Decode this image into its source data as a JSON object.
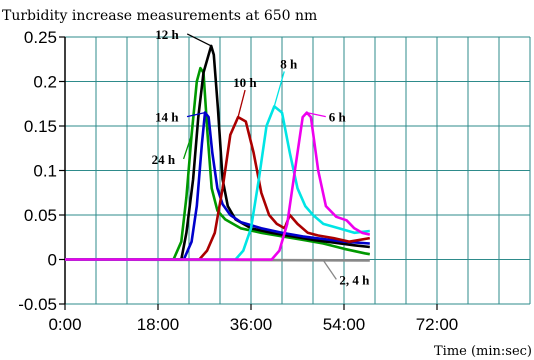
{
  "chart_data": {
    "type": "line",
    "title": "Turbidity increase measurements at 650 nm",
    "xlabel": "Time (min:sec)",
    "ylabel": "",
    "x_unit": "minutes",
    "xlim": [
      0,
      90
    ],
    "ylim": [
      -0.05,
      0.25
    ],
    "grid": true,
    "x_ticks": [
      {
        "value": 0,
        "label": "0:00"
      },
      {
        "value": 18,
        "label": "18:00"
      },
      {
        "value": 36,
        "label": "36:00"
      },
      {
        "value": 54,
        "label": "54:00"
      },
      {
        "value": 72,
        "label": "72:00"
      }
    ],
    "y_ticks": [
      {
        "value": -0.05,
        "label": "-0.05"
      },
      {
        "value": 0,
        "label": "0"
      },
      {
        "value": 0.05,
        "label": "0.05"
      },
      {
        "value": 0.1,
        "label": "0.1"
      },
      {
        "value": 0.15,
        "label": "0.15"
      },
      {
        "value": 0.2,
        "label": "0.2"
      },
      {
        "value": 0.25,
        "label": "0.25"
      }
    ],
    "series": [
      {
        "name": "2, 4 h",
        "color": "#888888",
        "points": [
          [
            0,
            0
          ],
          [
            59,
            -0.001
          ]
        ]
      },
      {
        "name": "24 h",
        "color": "#009900",
        "points": [
          [
            0,
            0
          ],
          [
            21,
            0
          ],
          [
            22.5,
            0.02
          ],
          [
            23.5,
            0.07
          ],
          [
            24.5,
            0.14
          ],
          [
            25.5,
            0.2
          ],
          [
            26.2,
            0.215
          ],
          [
            26.8,
            0.21
          ],
          [
            27.6,
            0.14
          ],
          [
            28.4,
            0.08
          ],
          [
            29.5,
            0.055
          ],
          [
            31,
            0.045
          ],
          [
            34,
            0.035
          ],
          [
            38,
            0.03
          ],
          [
            42,
            0.026
          ],
          [
            46,
            0.022
          ],
          [
            50,
            0.018
          ],
          [
            54,
            0.012
          ],
          [
            58,
            0.007
          ],
          [
            59,
            0.006
          ]
        ]
      },
      {
        "name": "12 h",
        "color": "#000000",
        "points": [
          [
            0,
            0
          ],
          [
            22.5,
            0
          ],
          [
            23.5,
            0.03
          ],
          [
            24.8,
            0.09
          ],
          [
            25.8,
            0.16
          ],
          [
            26.8,
            0.21
          ],
          [
            27.8,
            0.23
          ],
          [
            28.3,
            0.24
          ],
          [
            28.8,
            0.23
          ],
          [
            29.6,
            0.17
          ],
          [
            30.5,
            0.09
          ],
          [
            31.5,
            0.06
          ],
          [
            33,
            0.045
          ],
          [
            36,
            0.035
          ],
          [
            40,
            0.03
          ],
          [
            44,
            0.026
          ],
          [
            48,
            0.022
          ],
          [
            52,
            0.019
          ],
          [
            56,
            0.016
          ],
          [
            59,
            0.014
          ]
        ]
      },
      {
        "name": "14 h",
        "color": "#0000cc",
        "points": [
          [
            0,
            0
          ],
          [
            23,
            0
          ],
          [
            24.5,
            0.02
          ],
          [
            25.5,
            0.06
          ],
          [
            26.5,
            0.13
          ],
          [
            27.1,
            0.165
          ],
          [
            27.8,
            0.16
          ],
          [
            28.5,
            0.12
          ],
          [
            29.5,
            0.08
          ],
          [
            30.5,
            0.062
          ],
          [
            32,
            0.05
          ],
          [
            34,
            0.042
          ],
          [
            38,
            0.035
          ],
          [
            42,
            0.03
          ],
          [
            46,
            0.026
          ],
          [
            50,
            0.023
          ],
          [
            54,
            0.02
          ],
          [
            59,
            0.018
          ]
        ]
      },
      {
        "name": "10 h",
        "color": "#aa0000",
        "points": [
          [
            0,
            0
          ],
          [
            26,
            0
          ],
          [
            27.5,
            0.01
          ],
          [
            29,
            0.03
          ],
          [
            30.5,
            0.08
          ],
          [
            32,
            0.14
          ],
          [
            33.5,
            0.16
          ],
          [
            35,
            0.155
          ],
          [
            36.5,
            0.12
          ],
          [
            38,
            0.075
          ],
          [
            39.5,
            0.05
          ],
          [
            41,
            0.04
          ],
          [
            42.5,
            0.035
          ],
          [
            43.5,
            0.05
          ],
          [
            45,
            0.04
          ],
          [
            47,
            0.03
          ],
          [
            49,
            0.027
          ],
          [
            52,
            0.024
          ],
          [
            55,
            0.02
          ],
          [
            59,
            0.024
          ]
        ]
      },
      {
        "name": "8 h",
        "color": "#00e5e5",
        "points": [
          [
            0,
            0
          ],
          [
            33,
            0
          ],
          [
            34.5,
            0.01
          ],
          [
            36,
            0.035
          ],
          [
            37.5,
            0.09
          ],
          [
            39,
            0.15
          ],
          [
            40.5,
            0.172
          ],
          [
            42,
            0.165
          ],
          [
            43.5,
            0.12
          ],
          [
            45,
            0.08
          ],
          [
            46.5,
            0.06
          ],
          [
            48,
            0.05
          ],
          [
            50,
            0.04
          ],
          [
            53,
            0.035
          ],
          [
            56,
            0.03
          ],
          [
            59,
            0.032
          ]
        ]
      },
      {
        "name": "6 h",
        "color": "#ee00ee",
        "points": [
          [
            0,
            0
          ],
          [
            40,
            0
          ],
          [
            41.5,
            0.01
          ],
          [
            43,
            0.04
          ],
          [
            44.5,
            0.1
          ],
          [
            46,
            0.16
          ],
          [
            46.8,
            0.165
          ],
          [
            47.6,
            0.16
          ],
          [
            49,
            0.1
          ],
          [
            50.5,
            0.06
          ],
          [
            52.5,
            0.048
          ],
          [
            54.5,
            0.044
          ],
          [
            56,
            0.035
          ],
          [
            57.5,
            0.03
          ],
          [
            59,
            0.028
          ]
        ]
      }
    ],
    "annotations": [
      {
        "label": "12 h",
        "series": "12 h",
        "at": [
          28.3,
          0.24
        ]
      },
      {
        "label": "10 h",
        "series": "10 h",
        "at": [
          33.5,
          0.16
        ]
      },
      {
        "label": "8 h",
        "series": "8 h",
        "at": [
          40.5,
          0.172
        ]
      },
      {
        "label": "6 h",
        "series": "6 h",
        "at": [
          46.8,
          0.165
        ]
      },
      {
        "label": "14 h",
        "series": "14 h",
        "at": [
          27.1,
          0.165
        ]
      },
      {
        "label": "24 h",
        "series": "24 h",
        "at": [
          24.5,
          0.14
        ]
      },
      {
        "label": "2, 4 h",
        "series": "2, 4 h",
        "at": [
          50,
          -0.001
        ]
      }
    ]
  }
}
